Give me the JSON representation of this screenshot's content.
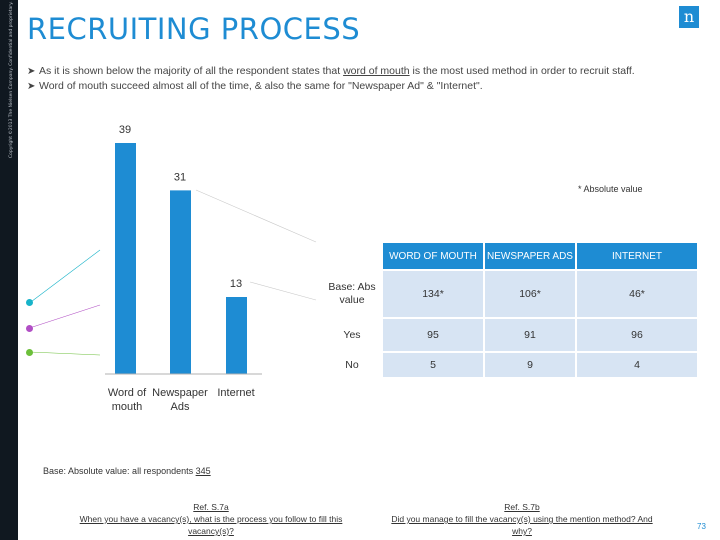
{
  "sidebar": {
    "text": "Copyright ©2013 The Nielsen Company. Confidential and proprietary."
  },
  "logo": {
    "glyph": "n"
  },
  "title": "RECRUITING PROCESS",
  "bullets": [
    {
      "before": "As it is shown below the majority of all the respondent states that ",
      "emph": "word of mouth",
      "after": " is the most used method in order to recruit staff."
    },
    {
      "before": "Word of mouth succeed almost all of the time, & also the same for \"Newspaper Ad\" & \"Internet\".",
      "emph": "",
      "after": ""
    }
  ],
  "chart_data": {
    "type": "bar",
    "categories": [
      "Word of mouth",
      "Newspaper Ads",
      "Internet"
    ],
    "category_lines": [
      [
        "Word of",
        "mouth"
      ],
      [
        "Newspaper",
        "Ads"
      ],
      [
        "Internet"
      ]
    ],
    "values": [
      39,
      31,
      13
    ],
    "value_labels": [
      "39",
      "31",
      "13"
    ],
    "ylim": [
      0,
      39
    ],
    "bar_color": "#1e8cd3",
    "grid": false,
    "legend": "none"
  },
  "note": "* Absolute value",
  "table": {
    "headers": [
      "",
      "WORD OF MOUTH",
      "NEWSPAPER ADS",
      "INTERNET"
    ],
    "rows": [
      {
        "label": "Base: Abs value",
        "cells": [
          "134*",
          "106*",
          "46*"
        ]
      },
      {
        "label": "Yes",
        "cells": [
          "95",
          "91",
          "96"
        ]
      },
      {
        "label": "No",
        "cells": [
          "5",
          "9",
          "4"
        ]
      }
    ]
  },
  "base": {
    "prefix": "Base: Absolute value: all respondents ",
    "count": "345"
  },
  "refs": [
    {
      "code": "Ref. S.7a",
      "question": "When you have a vacancy(s), what is the process you follow to fill this vacancy(s)?"
    },
    {
      "code": "Ref. S.7b",
      "question": "Did you manage to fill the vacancy(s) using the mention method? And why?"
    }
  ],
  "page_number": "73",
  "colors": {
    "accent": "#1e8cd3",
    "dot_teal": "#17b3c9",
    "dot_purple": "#b14fc5",
    "dot_green": "#6cbf3a"
  }
}
